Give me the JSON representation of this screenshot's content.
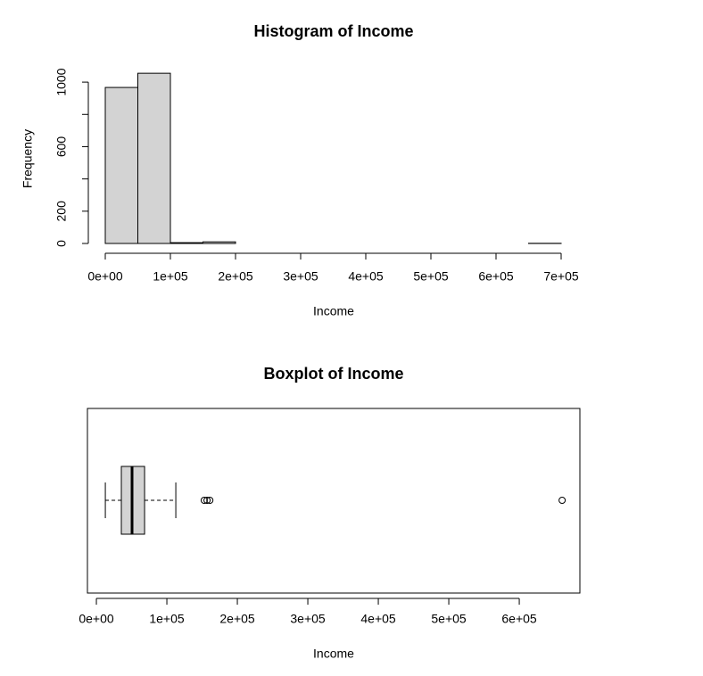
{
  "chart_data": [
    {
      "type": "histogram",
      "title": "Histogram of Income",
      "xlabel": "Income",
      "ylabel": "Frequency",
      "bins": [
        0,
        50000,
        100000,
        150000,
        200000,
        250000,
        300000,
        350000,
        400000,
        450000,
        500000,
        550000,
        600000,
        650000,
        700000
      ],
      "counts": [
        967,
        1055,
        5,
        10,
        0,
        0,
        0,
        0,
        0,
        0,
        0,
        0,
        0,
        1
      ],
      "color": "#d3d3d3",
      "xlim": [
        0,
        700000
      ],
      "xticks": [
        {
          "value": 0,
          "label": "0e+00"
        },
        {
          "value": 100000,
          "label": "1e+05"
        },
        {
          "value": 200000,
          "label": "2e+05"
        },
        {
          "value": 300000,
          "label": "3e+05"
        },
        {
          "value": 400000,
          "label": "4e+05"
        },
        {
          "value": 500000,
          "label": "5e+05"
        },
        {
          "value": 600000,
          "label": "6e+05"
        },
        {
          "value": 700000,
          "label": "7e+05"
        }
      ],
      "ylim": [
        0,
        1100
      ],
      "yticks": [
        {
          "value": 0,
          "label": "0"
        },
        {
          "value": 200,
          "label": "200"
        },
        {
          "value": 400,
          "label": null
        },
        {
          "value": 600,
          "label": "600"
        },
        {
          "value": 800,
          "label": null
        },
        {
          "value": 1000,
          "label": "1000"
        }
      ]
    },
    {
      "type": "boxplot",
      "title": "Boxplot of Income",
      "xlabel": "Income",
      "whisker_low": 12700,
      "q1": 35400,
      "median": 50600,
      "q3": 68400,
      "whisker_high": 112700,
      "outliers": [
        153000,
        157000,
        161000,
        660800
      ],
      "color": "#d3d3d3",
      "xlim": [
        -12700,
        686000
      ],
      "xticks": [
        {
          "value": 0,
          "label": "0e+00"
        },
        {
          "value": 100000,
          "label": "1e+05"
        },
        {
          "value": 200000,
          "label": "2e+05"
        },
        {
          "value": 300000,
          "label": "3e+05"
        },
        {
          "value": 400000,
          "label": "4e+05"
        },
        {
          "value": 500000,
          "label": "5e+05"
        },
        {
          "value": 600000,
          "label": "6e+05"
        }
      ]
    }
  ]
}
